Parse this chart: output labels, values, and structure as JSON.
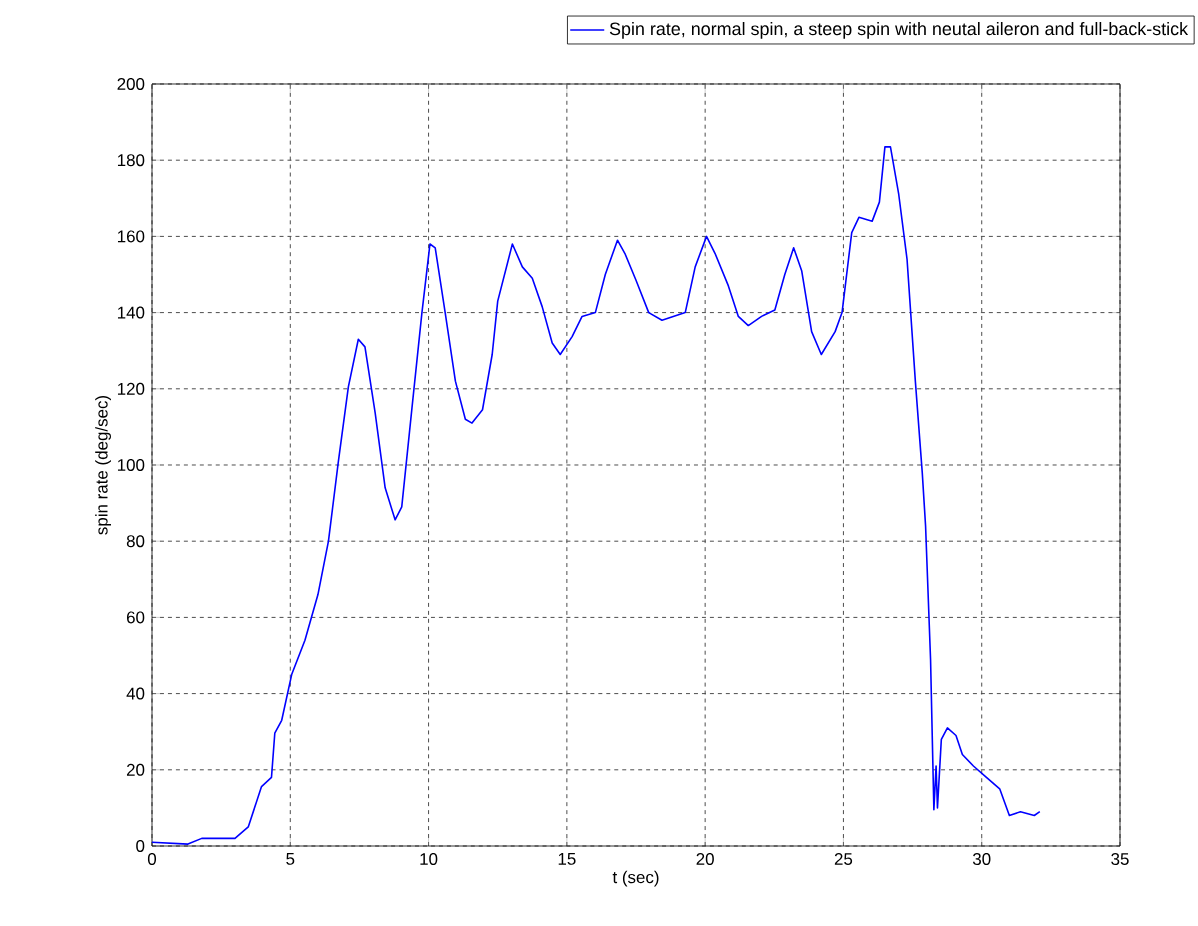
{
  "chart_data": {
    "type": "line",
    "xlabel": "t (sec)",
    "ylabel": "spin rate (deg/sec)",
    "xlim": [
      0,
      35
    ],
    "xticks": [
      0,
      5,
      10,
      15,
      20,
      25,
      30,
      35
    ],
    "ylim": [
      0,
      200
    ],
    "yticks": [
      0,
      20,
      40,
      60,
      80,
      100,
      120,
      140,
      160,
      180,
      200
    ],
    "grid": true,
    "legend": "top",
    "series": [
      {
        "name": "Spin rate, normal spin, a steep spin with neutal aileron and full-back-stick",
        "color": "#0000ff",
        "x": [
          0,
          1.3,
          1.8,
          3.0,
          3.48,
          3.96,
          4.32,
          4.44,
          4.69,
          5.05,
          5.53,
          6.0,
          6.38,
          6.74,
          7.1,
          7.46,
          7.7,
          8.07,
          8.43,
          8.79,
          9.03,
          9.4,
          9.76,
          10.05,
          10.24,
          10.6,
          10.97,
          11.33,
          11.57,
          11.95,
          12.3,
          12.5,
          13.03,
          13.39,
          13.75,
          14.11,
          14.47,
          14.76,
          15.19,
          15.55,
          16.03,
          16.39,
          16.83,
          17.1,
          17.5,
          17.96,
          18.44,
          19.28,
          19.64,
          20.05,
          20.36,
          20.84,
          21.2,
          21.56,
          22.04,
          22.52,
          22.88,
          23.2,
          23.49,
          23.85,
          24.2,
          24.7,
          24.95,
          25.3,
          25.56,
          26.04,
          26.3,
          26.5,
          26.7,
          27.0,
          27.3,
          27.6,
          27.85,
          27.97,
          28.15,
          28.27,
          28.35,
          28.4,
          28.54,
          28.76,
          29.07,
          29.3,
          29.7,
          30.17,
          30.65,
          31.0,
          31.4,
          31.9,
          32.1
        ],
        "values": [
          1,
          0.5,
          2,
          2,
          5,
          15.6,
          18,
          29.6,
          33,
          45,
          54,
          66,
          80,
          101,
          120.5,
          133,
          131,
          113.6,
          94,
          85.6,
          89,
          115,
          140,
          158,
          157,
          140,
          122,
          112,
          111,
          114.5,
          129,
          143,
          158,
          152,
          149,
          141.5,
          132,
          129,
          133.7,
          139,
          140,
          150,
          159,
          155.5,
          148.5,
          140,
          138,
          140,
          152,
          160,
          155.5,
          147,
          139,
          136.6,
          139,
          140.7,
          150,
          157,
          151,
          135,
          129,
          135,
          140,
          161,
          165,
          164,
          169,
          183.5,
          183.5,
          171,
          154,
          122,
          98,
          84,
          49,
          9.5,
          21,
          10,
          28,
          31,
          29,
          24,
          21,
          18,
          15,
          8,
          9,
          8,
          9
        ]
      }
    ]
  }
}
